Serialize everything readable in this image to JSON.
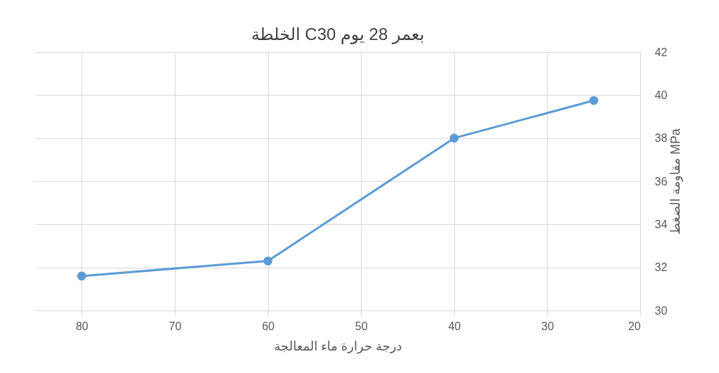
{
  "chart_data": {
    "type": "line",
    "title": "الخلطة  C30 بعمر 28 يوم",
    "xlabel": "درجة حرارة ماء المعالجة",
    "ylabel": "مقاومة الضغط MPa",
    "x": [
      80,
      60,
      40,
      25
    ],
    "series": [
      {
        "color": "#5b9bd5",
        "values": [
          31.6,
          32.3,
          38,
          39.75
        ]
      }
    ],
    "xlim": [
      85,
      20
    ],
    "xticks": [
      80,
      70,
      60,
      50,
      40,
      30,
      20
    ],
    "ylim": [
      30,
      42
    ],
    "yticks": [
      30,
      32,
      34,
      36,
      38,
      40,
      42
    ],
    "grid": true,
    "marker": "circle",
    "line_style": "solid"
  }
}
